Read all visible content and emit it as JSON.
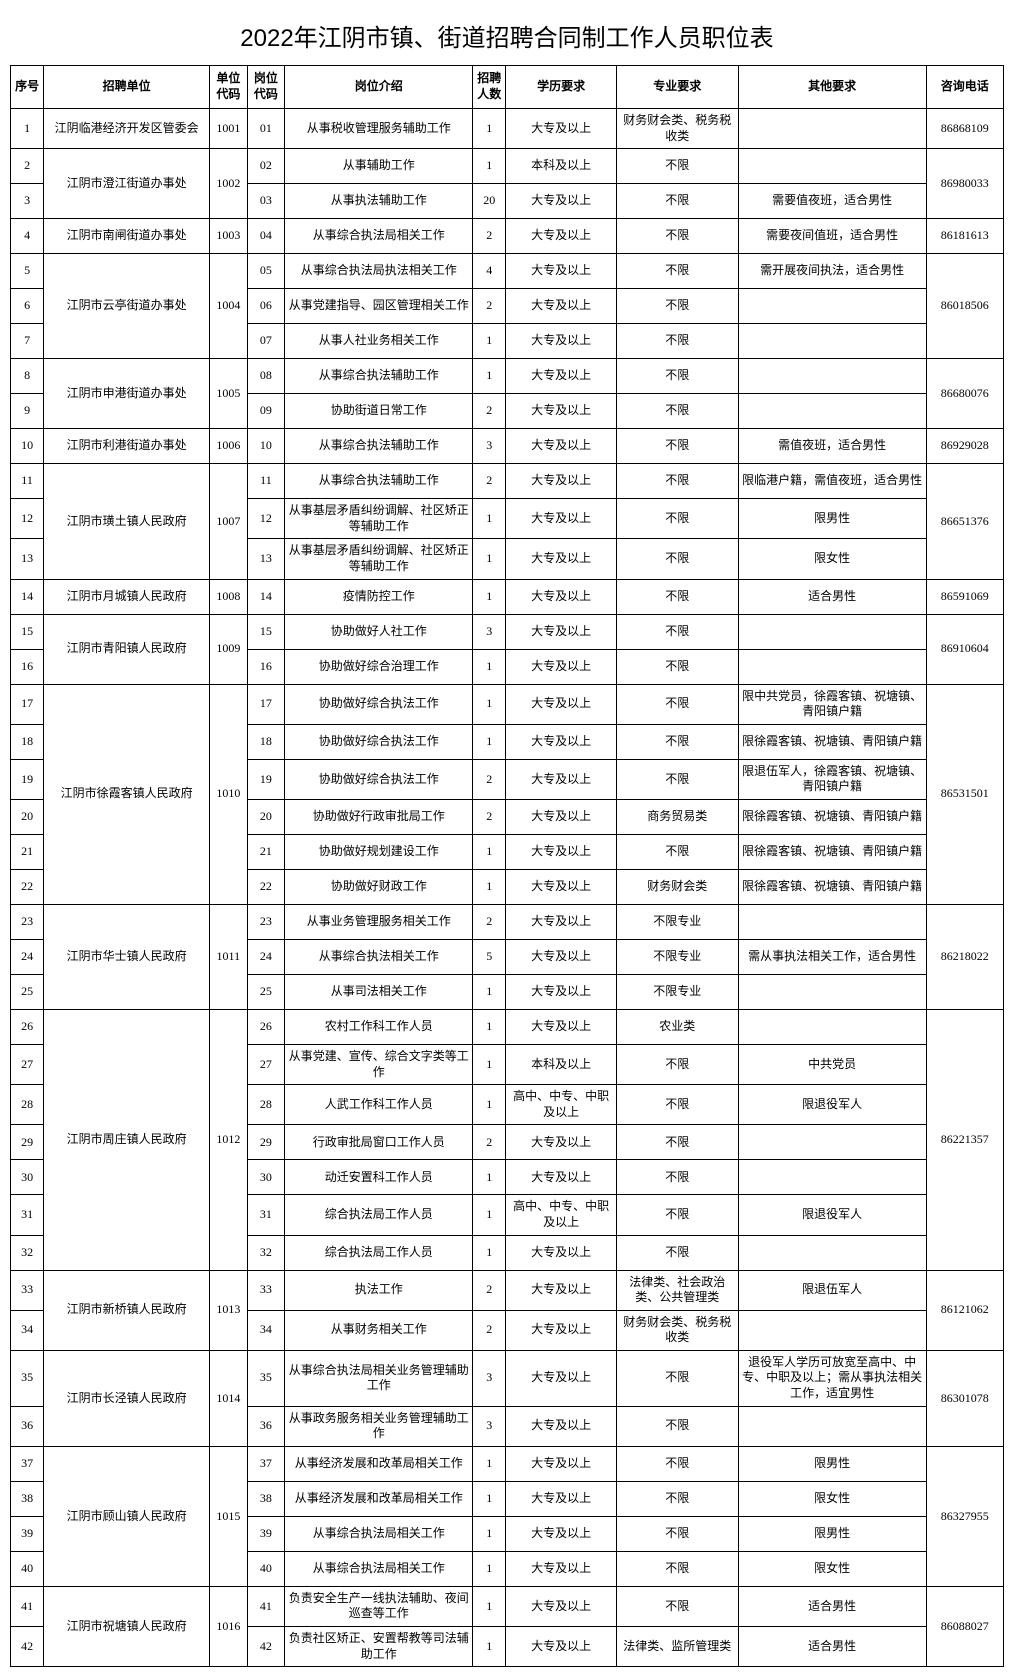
{
  "title": "2022年江阴市镇、街道招聘合同制工作人员职位表",
  "headers": {
    "seq": "序号",
    "unit": "招聘单位",
    "ucode": "单位代码",
    "pcode": "岗位代码",
    "desc": "岗位介绍",
    "num": "招聘人数",
    "edu": "学历要求",
    "major": "专业要求",
    "other": "其他要求",
    "tel": "咨询电话"
  },
  "units": [
    {
      "name": "江阴临港经济开发区管委会",
      "code": "1001",
      "tel": "86868109",
      "rows": [
        {
          "seq": "1",
          "pcode": "01",
          "desc": "从事税收管理服务辅助工作",
          "num": "1",
          "edu": "大专及以上",
          "major": "财务财会类、税务税收类",
          "other": ""
        }
      ]
    },
    {
      "name": "江阴市澄江街道办事处",
      "code": "1002",
      "tel": "86980033",
      "rows": [
        {
          "seq": "2",
          "pcode": "02",
          "desc": "从事辅助工作",
          "num": "1",
          "edu": "本科及以上",
          "major": "不限",
          "other": ""
        },
        {
          "seq": "3",
          "pcode": "03",
          "desc": "从事执法辅助工作",
          "num": "20",
          "edu": "大专及以上",
          "major": "不限",
          "other": "需要值夜班，适合男性"
        }
      ]
    },
    {
      "name": "江阴市南闸街道办事处",
      "code": "1003",
      "tel": "86181613",
      "rows": [
        {
          "seq": "4",
          "pcode": "04",
          "desc": "从事综合执法局相关工作",
          "num": "2",
          "edu": "大专及以上",
          "major": "不限",
          "other": "需要夜间值班，适合男性"
        }
      ]
    },
    {
      "name": "江阴市云亭街道办事处",
      "code": "1004",
      "tel": "86018506",
      "rows": [
        {
          "seq": "5",
          "pcode": "05",
          "desc": "从事综合执法局执法相关工作",
          "num": "4",
          "edu": "大专及以上",
          "major": "不限",
          "other": "需开展夜间执法，适合男性"
        },
        {
          "seq": "6",
          "pcode": "06",
          "desc": "从事党建指导、园区管理相关工作",
          "num": "2",
          "edu": "大专及以上",
          "major": "不限",
          "other": ""
        },
        {
          "seq": "7",
          "pcode": "07",
          "desc": "从事人社业务相关工作",
          "num": "1",
          "edu": "大专及以上",
          "major": "不限",
          "other": ""
        }
      ]
    },
    {
      "name": "江阴市申港街道办事处",
      "code": "1005",
      "tel": "86680076",
      "rows": [
        {
          "seq": "8",
          "pcode": "08",
          "desc": "从事综合执法辅助工作",
          "num": "1",
          "edu": "大专及以上",
          "major": "不限",
          "other": ""
        },
        {
          "seq": "9",
          "pcode": "09",
          "desc": "协助街道日常工作",
          "num": "2",
          "edu": "大专及以上",
          "major": "不限",
          "other": ""
        }
      ]
    },
    {
      "name": "江阴市利港街道办事处",
      "code": "1006",
      "tel": "86929028",
      "rows": [
        {
          "seq": "10",
          "pcode": "10",
          "desc": "从事综合执法辅助工作",
          "num": "3",
          "edu": "大专及以上",
          "major": "不限",
          "other": "需值夜班，适合男性"
        }
      ]
    },
    {
      "name": "江阴市璜土镇人民政府",
      "code": "1007",
      "tel": "86651376",
      "rows": [
        {
          "seq": "11",
          "pcode": "11",
          "desc": "从事综合执法辅助工作",
          "num": "2",
          "edu": "大专及以上",
          "major": "不限",
          "other": "限临港户籍，需值夜班，适合男性"
        },
        {
          "seq": "12",
          "pcode": "12",
          "desc": "从事基层矛盾纠纷调解、社区矫正等辅助工作",
          "num": "1",
          "edu": "大专及以上",
          "major": "不限",
          "other": "限男性"
        },
        {
          "seq": "13",
          "pcode": "13",
          "desc": "从事基层矛盾纠纷调解、社区矫正等辅助工作",
          "num": "1",
          "edu": "大专及以上",
          "major": "不限",
          "other": "限女性"
        }
      ]
    },
    {
      "name": "江阴市月城镇人民政府",
      "code": "1008",
      "tel": "86591069",
      "rows": [
        {
          "seq": "14",
          "pcode": "14",
          "desc": "疫情防控工作",
          "num": "1",
          "edu": "大专及以上",
          "major": "不限",
          "other": "适合男性"
        }
      ]
    },
    {
      "name": "江阴市青阳镇人民政府",
      "code": "1009",
      "tel": "86910604",
      "rows": [
        {
          "seq": "15",
          "pcode": "15",
          "desc": "协助做好人社工作",
          "num": "3",
          "edu": "大专及以上",
          "major": "不限",
          "other": ""
        },
        {
          "seq": "16",
          "pcode": "16",
          "desc": "协助做好综合治理工作",
          "num": "1",
          "edu": "大专及以上",
          "major": "不限",
          "other": ""
        }
      ]
    },
    {
      "name": "江阴市徐霞客镇人民政府",
      "code": "1010",
      "tel": "86531501",
      "rows": [
        {
          "seq": "17",
          "pcode": "17",
          "desc": "协助做好综合执法工作",
          "num": "1",
          "edu": "大专及以上",
          "major": "不限",
          "other": "限中共党员，徐霞客镇、祝塘镇、青阳镇户籍"
        },
        {
          "seq": "18",
          "pcode": "18",
          "desc": "协助做好综合执法工作",
          "num": "1",
          "edu": "大专及以上",
          "major": "不限",
          "other": "限徐霞客镇、祝塘镇、青阳镇户籍"
        },
        {
          "seq": "19",
          "pcode": "19",
          "desc": "协助做好综合执法工作",
          "num": "2",
          "edu": "大专及以上",
          "major": "不限",
          "other": "限退伍军人，徐霞客镇、祝塘镇、青阳镇户籍"
        },
        {
          "seq": "20",
          "pcode": "20",
          "desc": "协助做好行政审批局工作",
          "num": "2",
          "edu": "大专及以上",
          "major": "商务贸易类",
          "other": "限徐霞客镇、祝塘镇、青阳镇户籍"
        },
        {
          "seq": "21",
          "pcode": "21",
          "desc": "协助做好规划建设工作",
          "num": "1",
          "edu": "大专及以上",
          "major": "不限",
          "other": "限徐霞客镇、祝塘镇、青阳镇户籍"
        },
        {
          "seq": "22",
          "pcode": "22",
          "desc": "协助做好财政工作",
          "num": "1",
          "edu": "大专及以上",
          "major": "财务财会类",
          "other": "限徐霞客镇、祝塘镇、青阳镇户籍"
        }
      ]
    },
    {
      "name": "江阴市华士镇人民政府",
      "code": "1011",
      "tel": "86218022",
      "rows": [
        {
          "seq": "23",
          "pcode": "23",
          "desc": "从事业务管理服务相关工作",
          "num": "2",
          "edu": "大专及以上",
          "major": "不限专业",
          "other": ""
        },
        {
          "seq": "24",
          "pcode": "24",
          "desc": "从事综合执法相关工作",
          "num": "5",
          "edu": "大专及以上",
          "major": "不限专业",
          "other": "需从事执法相关工作，适合男性"
        },
        {
          "seq": "25",
          "pcode": "25",
          "desc": "从事司法相关工作",
          "num": "1",
          "edu": "大专及以上",
          "major": "不限专业",
          "other": ""
        }
      ]
    },
    {
      "name": "江阴市周庄镇人民政府",
      "code": "1012",
      "tel": "86221357",
      "rows": [
        {
          "seq": "26",
          "pcode": "26",
          "desc": "农村工作科工作人员",
          "num": "1",
          "edu": "大专及以上",
          "major": "农业类",
          "other": ""
        },
        {
          "seq": "27",
          "pcode": "27",
          "desc": "从事党建、宣传、综合文字类等工作",
          "num": "1",
          "edu": "本科及以上",
          "major": "不限",
          "other": "中共党员"
        },
        {
          "seq": "28",
          "pcode": "28",
          "desc": "人武工作科工作人员",
          "num": "1",
          "edu": "高中、中专、中职及以上",
          "major": "不限",
          "other": "限退役军人"
        },
        {
          "seq": "29",
          "pcode": "29",
          "desc": "行政审批局窗口工作人员",
          "num": "2",
          "edu": "大专及以上",
          "major": "不限",
          "other": ""
        },
        {
          "seq": "30",
          "pcode": "30",
          "desc": "动迁安置科工作人员",
          "num": "1",
          "edu": "大专及以上",
          "major": "不限",
          "other": ""
        },
        {
          "seq": "31",
          "pcode": "31",
          "desc": "综合执法局工作人员",
          "num": "1",
          "edu": "高中、中专、中职及以上",
          "major": "不限",
          "other": "限退役军人"
        },
        {
          "seq": "32",
          "pcode": "32",
          "desc": "综合执法局工作人员",
          "num": "1",
          "edu": "大专及以上",
          "major": "不限",
          "other": ""
        }
      ]
    },
    {
      "name": "江阴市新桥镇人民政府",
      "code": "1013",
      "tel": "86121062",
      "rows": [
        {
          "seq": "33",
          "pcode": "33",
          "desc": "执法工作",
          "num": "2",
          "edu": "大专及以上",
          "major": "法律类、社会政治类、公共管理类",
          "other": "限退伍军人"
        },
        {
          "seq": "34",
          "pcode": "34",
          "desc": "从事财务相关工作",
          "num": "2",
          "edu": "大专及以上",
          "major": "财务财会类、税务税收类",
          "other": ""
        }
      ]
    },
    {
      "name": "江阴市长泾镇人民政府",
      "code": "1014",
      "tel": "86301078",
      "rows": [
        {
          "seq": "35",
          "pcode": "35",
          "desc": "从事综合执法局相关业务管理辅助工作",
          "num": "3",
          "edu": "大专及以上",
          "major": "不限",
          "other": "退役军人学历可放宽至高中、中专、中职及以上；需从事执法相关工作，适宜男性"
        },
        {
          "seq": "36",
          "pcode": "36",
          "desc": "从事政务服务相关业务管理辅助工作",
          "num": "3",
          "edu": "大专及以上",
          "major": "不限",
          "other": ""
        }
      ]
    },
    {
      "name": "江阴市顾山镇人民政府",
      "code": "1015",
      "tel": "86327955",
      "rows": [
        {
          "seq": "37",
          "pcode": "37",
          "desc": "从事经济发展和改革局相关工作",
          "num": "1",
          "edu": "大专及以上",
          "major": "不限",
          "other": "限男性"
        },
        {
          "seq": "38",
          "pcode": "38",
          "desc": "从事经济发展和改革局相关工作",
          "num": "1",
          "edu": "大专及以上",
          "major": "不限",
          "other": "限女性"
        },
        {
          "seq": "39",
          "pcode": "39",
          "desc": "从事综合执法局相关工作",
          "num": "1",
          "edu": "大专及以上",
          "major": "不限",
          "other": "限男性"
        },
        {
          "seq": "40",
          "pcode": "40",
          "desc": "从事综合执法局相关工作",
          "num": "1",
          "edu": "大专及以上",
          "major": "不限",
          "other": "限女性"
        }
      ]
    },
    {
      "name": "江阴市祝塘镇人民政府",
      "code": "1016",
      "tel": "86088027",
      "rows": [
        {
          "seq": "41",
          "pcode": "41",
          "desc": "负责安全生产一线执法辅助、夜间巡查等工作",
          "num": "1",
          "edu": "大专及以上",
          "major": "不限",
          "other": "适合男性"
        },
        {
          "seq": "42",
          "pcode": "42",
          "desc": "负责社区矫正、安置帮教等司法辅助工作",
          "num": "1",
          "edu": "大专及以上",
          "major": "法律类、监所管理类",
          "other": "适合男性"
        }
      ]
    }
  ]
}
